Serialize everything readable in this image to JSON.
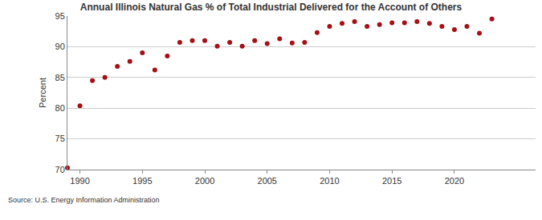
{
  "chart_data": {
    "type": "scatter",
    "title": "Annual Illinois Natural Gas % of Total Industrial Delivered for the Account of Others",
    "y_label": "Percent",
    "annotations": [
      "Source: U.S. Energy Information Administration"
    ],
    "x": [
      1989,
      1990,
      1991,
      1992,
      1993,
      1994,
      1995,
      1996,
      1997,
      1998,
      1999,
      2000,
      2001,
      2002,
      2003,
      2004,
      2005,
      2006,
      2007,
      2008,
      2009,
      2010,
      2011,
      2012,
      2013,
      2014,
      2015,
      2016,
      2017,
      2018,
      2019,
      2020,
      2021,
      2022,
      2023
    ],
    "values": [
      70.3,
      80.4,
      84.5,
      85.0,
      86.8,
      87.6,
      89.0,
      86.2,
      88.5,
      90.7,
      91.0,
      91.0,
      90.1,
      90.7,
      90.1,
      91.0,
      90.5,
      91.3,
      90.6,
      90.7,
      92.3,
      93.3,
      93.8,
      94.1,
      93.3,
      93.6,
      93.9,
      93.9,
      94.1,
      93.8,
      93.3,
      92.8,
      93.3,
      92.2,
      94.5
    ],
    "color": "#a50f15",
    "marker": "circle",
    "xlim": [
      1989,
      2026.5
    ],
    "xticks": [
      1990,
      1995,
      2000,
      2005,
      2010,
      2015,
      2020
    ],
    "ylim": [
      70,
      95
    ],
    "yticks": [
      70,
      75,
      80,
      85,
      90,
      95
    ],
    "grid": true
  }
}
